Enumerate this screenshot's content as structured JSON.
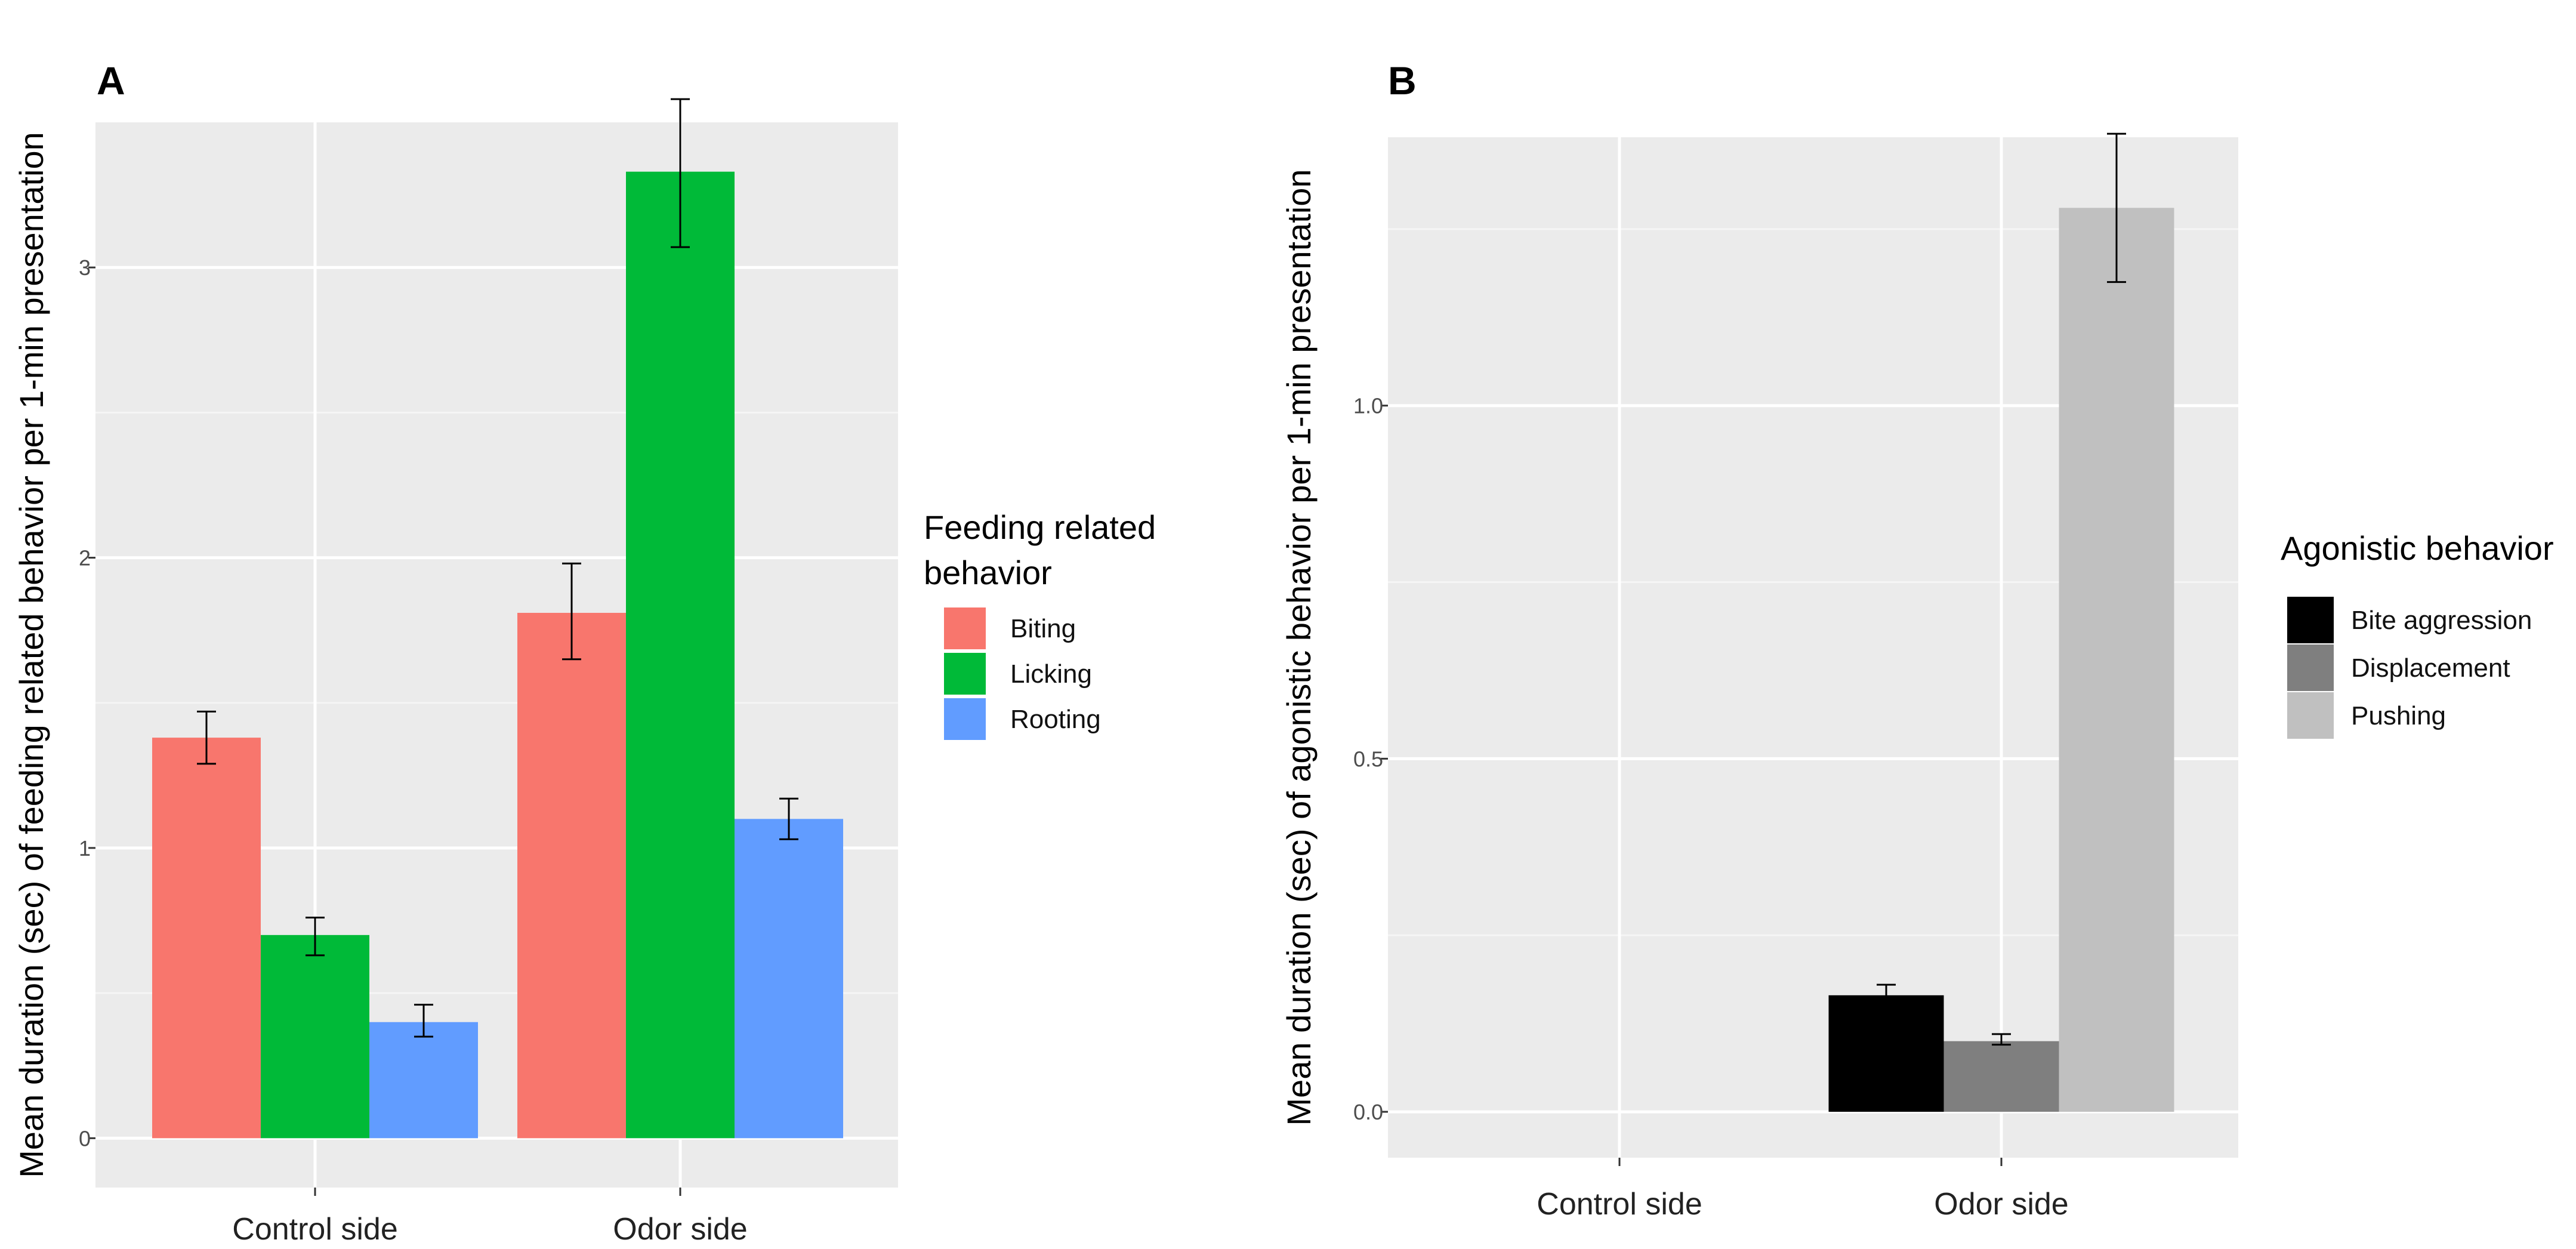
{
  "chart_data": [
    {
      "panel": "A",
      "type": "bar",
      "xlabel": "",
      "ylabel": "Mean duration (sec) of feeding related behavior per 1-min presentation",
      "categories": [
        "Control side",
        "Odor side"
      ],
      "ylim": [
        -0.17,
        3.5
      ],
      "yticks": [
        "0",
        "1",
        "2",
        "3"
      ],
      "grid": true,
      "legend_title": [
        "Feeding related",
        "behavior"
      ],
      "legend_position": "right",
      "series": [
        {
          "name": "Biting",
          "color": "#F8766D",
          "values": [
            1.38,
            1.81
          ],
          "err_low": [
            1.29,
            1.65
          ],
          "err_high": [
            1.47,
            1.98
          ]
        },
        {
          "name": "Licking",
          "color": "#00BA38",
          "values": [
            0.7,
            3.33
          ],
          "err_low": [
            0.63,
            3.07
          ],
          "err_high": [
            0.76,
            3.58
          ]
        },
        {
          "name": "Rooting",
          "color": "#619CFF",
          "values": [
            0.4,
            1.1
          ],
          "err_low": [
            0.35,
            1.03
          ],
          "err_high": [
            0.46,
            1.17
          ]
        }
      ]
    },
    {
      "panel": "B",
      "type": "bar",
      "xlabel": "",
      "ylabel": "Mean duration (sec) of agonistic behavior per 1-min presentation",
      "categories": [
        "Control side",
        "Odor side"
      ],
      "ylim": [
        -0.065,
        1.38
      ],
      "yticks": [
        "0.0",
        "0.5",
        "1.0"
      ],
      "grid": true,
      "legend_title": [
        "Agonistic behavior"
      ],
      "legend_position": "right",
      "series": [
        {
          "name": "Bite aggression",
          "color": "#000000",
          "values": [
            0.0,
            0.165
          ],
          "err_low": [
            0.0,
            0.155
          ],
          "err_high": [
            0.0,
            0.18
          ]
        },
        {
          "name": "Displacement",
          "color": "#7F7F7F",
          "values": [
            0.0,
            0.1
          ],
          "err_low": [
            0.0,
            0.095
          ],
          "err_high": [
            0.0,
            0.11
          ]
        },
        {
          "name": "Pushing",
          "color": "#C0C0C0",
          "values": [
            0.0,
            1.28
          ],
          "err_low": [
            0.0,
            1.175
          ],
          "err_high": [
            0.0,
            1.385
          ]
        }
      ]
    }
  ]
}
